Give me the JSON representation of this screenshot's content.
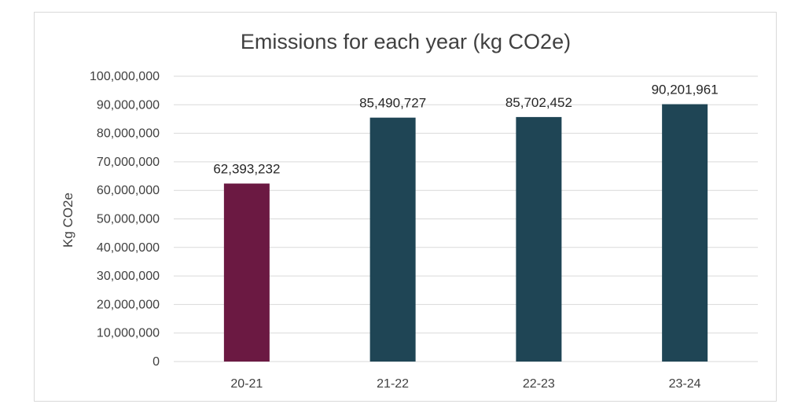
{
  "chart_data": {
    "type": "bar",
    "title": "Emissions for each year (kg CO2e)",
    "xlabel": "",
    "ylabel": "Kg CO2e",
    "categories": [
      "20-21",
      "21-22",
      "22-23",
      "23-24"
    ],
    "values": [
      62393232,
      85490727,
      85702452,
      90201961
    ],
    "data_labels": [
      "62,393,232",
      "85,490,727",
      "85,702,452",
      "90,201,961"
    ],
    "bar_colors": [
      "#6B1942",
      "#1F4555",
      "#1F4555",
      "#1F4555"
    ],
    "ylim": [
      0,
      100000000
    ],
    "y_ticks": [
      "0",
      "10,000,000",
      "20,000,000",
      "30,000,000",
      "40,000,000",
      "50,000,000",
      "60,000,000",
      "70,000,000",
      "80,000,000",
      "90,000,000",
      "100,000,000"
    ],
    "grid": true,
    "legend": "none",
    "gridline_color": "#d9d9d9"
  }
}
